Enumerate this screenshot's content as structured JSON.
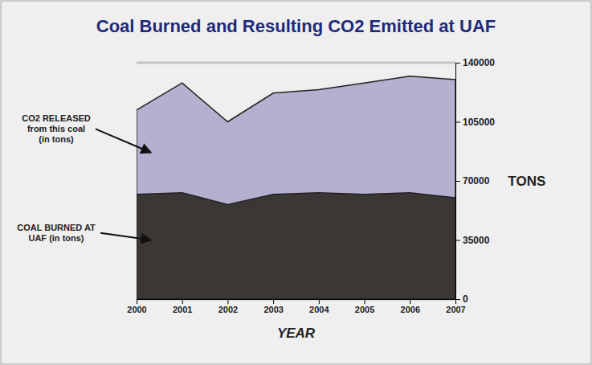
{
  "chart_data": {
    "type": "area",
    "title": "Coal Burned and Resulting CO2 Emitted at UAF",
    "x_label": "YEAR",
    "y_label": "TONS",
    "x": [
      2000,
      2001,
      2002,
      2003,
      2004,
      2005,
      2006,
      2007
    ],
    "xlim": [
      2000,
      2007
    ],
    "xticks": [
      2000,
      2001,
      2002,
      2003,
      2004,
      2005,
      2006,
      2007
    ],
    "ylim": [
      0,
      140000
    ],
    "yticks": [
      0,
      35000,
      70000,
      105000,
      140000
    ],
    "grid": true,
    "stacked": false,
    "series": [
      {
        "name": "CO2 RELEASED from this coal (in tons)",
        "color": "#b4b0d0",
        "values": [
          112000,
          128000,
          105000,
          122000,
          124000,
          128000,
          132000,
          130000
        ]
      },
      {
        "name": "COAL BURNED AT UAF (in tons)",
        "color": "#3b3734",
        "values": [
          62000,
          63000,
          56000,
          62000,
          63000,
          62000,
          63000,
          60000
        ]
      }
    ]
  }
}
